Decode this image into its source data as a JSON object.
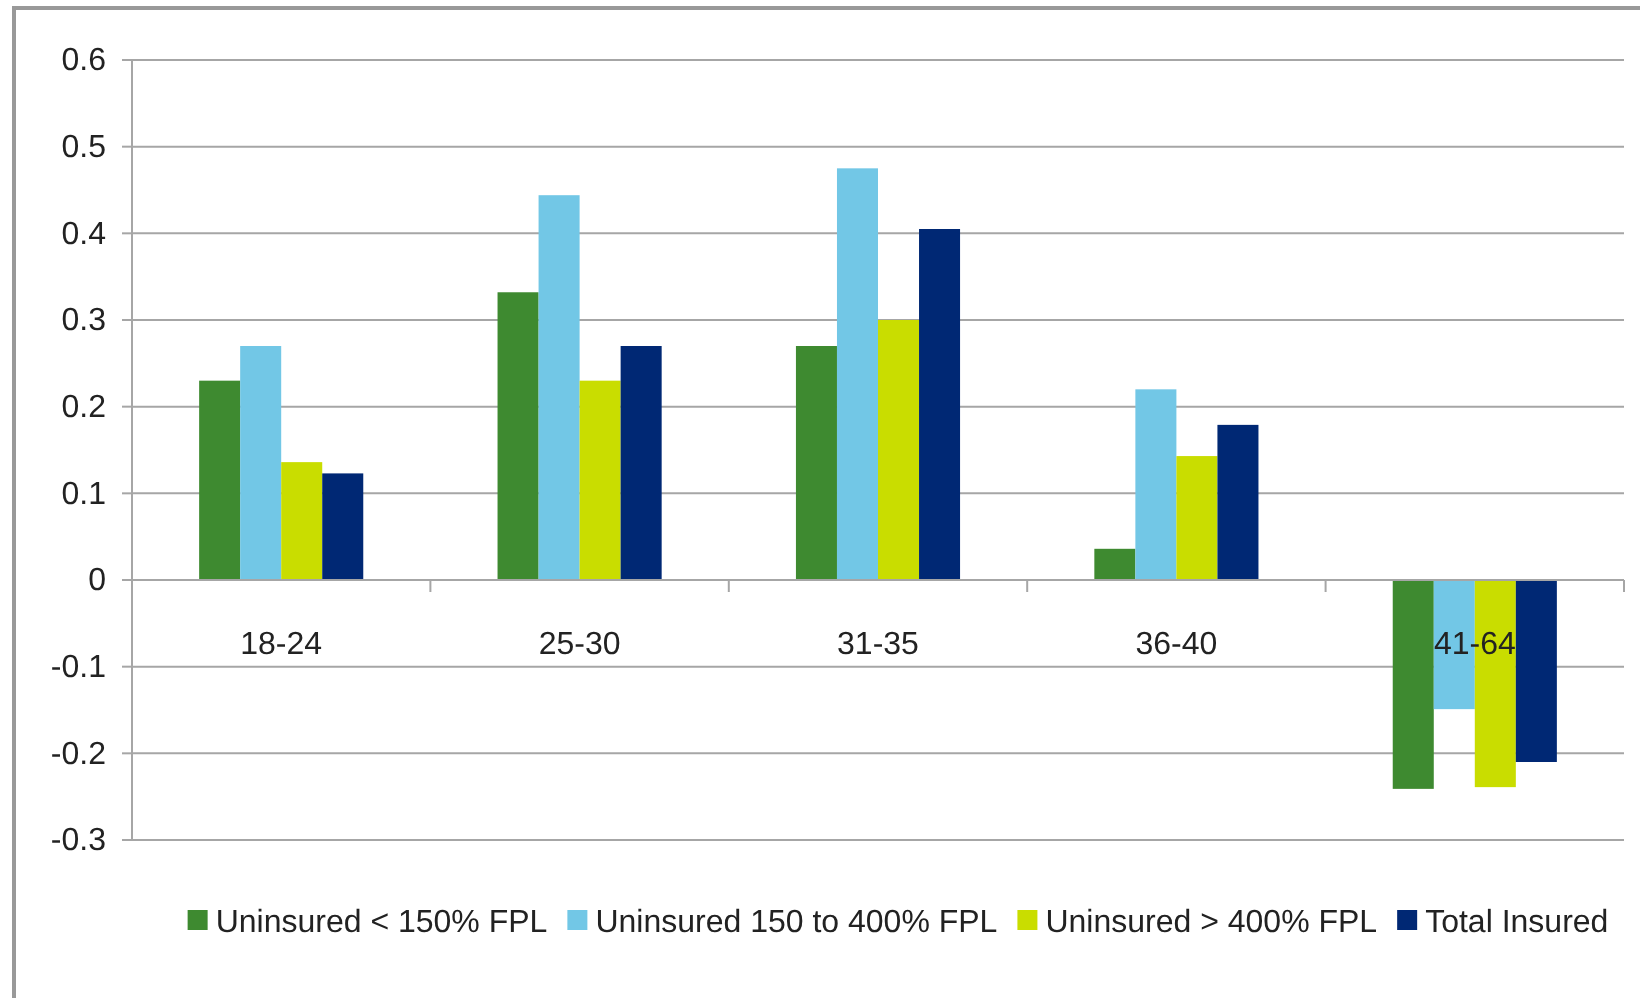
{
  "chart_data": {
    "type": "bar",
    "categories": [
      "18-24",
      "25-30",
      "31-35",
      "36-40",
      "41-64"
    ],
    "series": [
      {
        "name": "Uninsured < 150% FPL",
        "color": "#3e8a30",
        "values": [
          0.23,
          0.332,
          0.27,
          0.036,
          -0.241
        ]
      },
      {
        "name": "Uninsured 150 to 400% FPL",
        "color": "#72c7e6",
        "values": [
          0.27,
          0.444,
          0.475,
          0.22,
          -0.149
        ]
      },
      {
        "name": "Uninsured > 400% FPL",
        "color": "#c9dd00",
        "values": [
          0.136,
          0.23,
          0.3,
          0.143,
          -0.239
        ]
      },
      {
        "name": "Total Insured",
        "color": "#002874",
        "values": [
          0.123,
          0.27,
          0.405,
          0.179,
          -0.21
        ]
      }
    ],
    "ylim": [
      -0.3,
      0.6
    ],
    "yticks": [
      -0.3,
      -0.2,
      -0.1,
      0,
      0.1,
      0.2,
      0.3,
      0.4,
      0.5,
      0.6
    ],
    "grid": "y",
    "legend": "bottom"
  }
}
